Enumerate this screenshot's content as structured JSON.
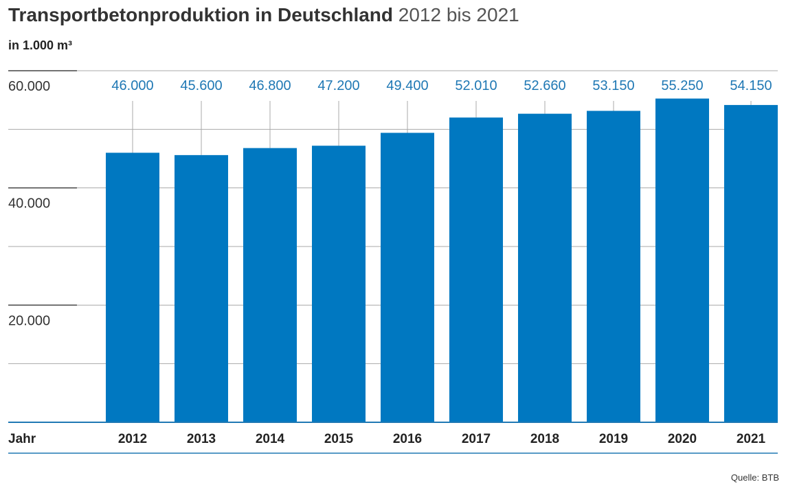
{
  "header": {
    "title_bold": "Transportbetonproduktion in Deutschland",
    "title_rest": "2012 bis 2021",
    "unit": "in 1.000 m³"
  },
  "source": "Quelle: BTB",
  "colors": {
    "bar": "#0078c1",
    "value_label": "#1f78b4",
    "axis_line": "#1f78b4",
    "grid": "#aaaaaa",
    "major_tick": "#444444"
  },
  "chart_data": {
    "type": "bar",
    "xlabel": "Jahr",
    "ylabel": "",
    "categories": [
      "2012",
      "2013",
      "2014",
      "2015",
      "2016",
      "2017",
      "2018",
      "2019",
      "2020",
      "2021"
    ],
    "values": [
      46000,
      45600,
      46800,
      47200,
      49400,
      52010,
      52660,
      53150,
      55250,
      54150
    ],
    "value_labels": [
      "46.000",
      "45.600",
      "46.800",
      "47.200",
      "49.400",
      "52.010",
      "52.660",
      "53.150",
      "55.250",
      "54.150"
    ],
    "y_ticks": [
      20000,
      40000,
      60000
    ],
    "y_tick_labels": [
      "20.000",
      "40.000",
      "60.000"
    ],
    "ylim": [
      0,
      60000
    ],
    "grid": true,
    "legend": "none"
  }
}
